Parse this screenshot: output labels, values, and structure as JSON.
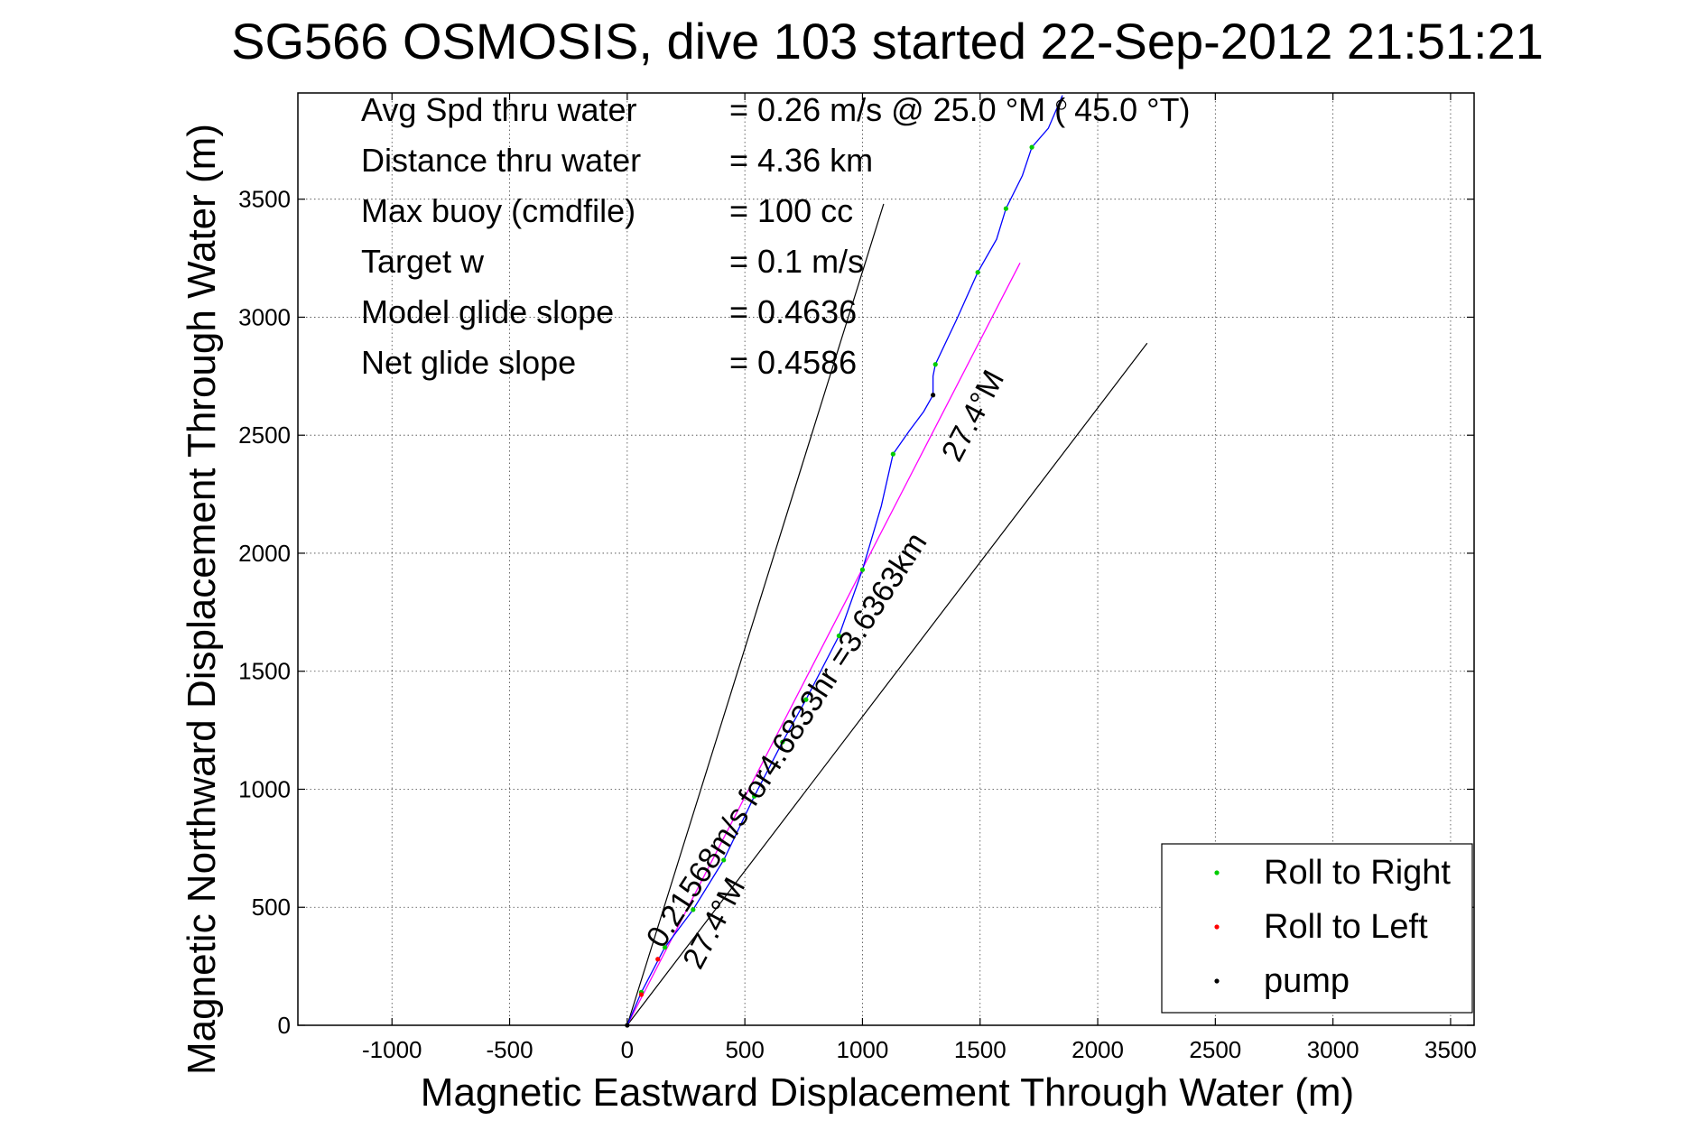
{
  "chart_data": {
    "type": "line",
    "title": "SG566 OSMOSIS, dive 103 started 22-Sep-2012 21:51:21",
    "xlabel": "Magnetic Eastward Displacement Through Water (m)",
    "ylabel": "Magnetic Northward Displacement Through Water (m)",
    "xlim": [
      -1400,
      3600
    ],
    "ylim": [
      0,
      3950
    ],
    "x_ticks": [
      -1000,
      -500,
      0,
      500,
      1000,
      1500,
      2000,
      2500,
      3000,
      3500
    ],
    "y_ticks": [
      0,
      500,
      1000,
      1500,
      2000,
      2500,
      3000,
      3500
    ],
    "grid": true,
    "legend_position": "bottom-right",
    "colors": {
      "track": "#0000ff",
      "glide_line": "#ff00ff",
      "roll_right": "#00cc00",
      "roll_left": "#ff0000",
      "pump": "#000000",
      "cone": "#000000"
    },
    "info_box": {
      "labels": [
        "Avg Spd thru water",
        "Distance thru water",
        "Max buoy (cmdfile)",
        "Target w",
        "Model glide slope",
        "Net glide slope"
      ],
      "values": [
        "=  0.26 m/s @  25.0 °M ( 45.0 °T)",
        "=  4.36 km",
        "= 100 cc",
        "= 0.1 m/s",
        "= 0.4636",
        "= 0.4586"
      ]
    },
    "series": [
      {
        "name": "Roll to Right",
        "marker": "point",
        "points": [
          [
            60,
            140
          ],
          [
            160,
            330
          ],
          [
            280,
            490
          ],
          [
            410,
            700
          ],
          [
            540,
            970
          ],
          [
            660,
            1200
          ],
          [
            760,
            1380
          ],
          [
            900,
            1650
          ],
          [
            1000,
            1930
          ],
          [
            1130,
            2420
          ],
          [
            1310,
            2800
          ],
          [
            1490,
            3190
          ],
          [
            1610,
            3460
          ],
          [
            1720,
            3720
          ]
        ]
      },
      {
        "name": "Roll to Left",
        "marker": "point",
        "points": [
          [
            60,
            130
          ],
          [
            130,
            280
          ]
        ]
      },
      {
        "name": "pump",
        "marker": "point",
        "points": [
          [
            0,
            0
          ],
          [
            1300,
            2670
          ]
        ]
      }
    ],
    "track": [
      [
        0,
        0
      ],
      [
        60,
        140
      ],
      [
        160,
        330
      ],
      [
        280,
        490
      ],
      [
        410,
        700
      ],
      [
        540,
        970
      ],
      [
        660,
        1200
      ],
      [
        760,
        1380
      ],
      [
        900,
        1650
      ],
      [
        1000,
        1930
      ],
      [
        1080,
        2200
      ],
      [
        1130,
        2420
      ],
      [
        1200,
        2520
      ],
      [
        1260,
        2600
      ],
      [
        1300,
        2670
      ],
      [
        1300,
        2750
      ],
      [
        1310,
        2800
      ],
      [
        1400,
        2990
      ],
      [
        1490,
        3190
      ],
      [
        1570,
        3330
      ],
      [
        1610,
        3460
      ],
      [
        1680,
        3600
      ],
      [
        1720,
        3720
      ],
      [
        1790,
        3800
      ],
      [
        1850,
        3940
      ]
    ],
    "glide_line": [
      [
        0,
        0
      ],
      [
        1670,
        3230
      ]
    ],
    "cone_lines": [
      [
        [
          0,
          0
        ],
        [
          1090,
          3480
        ]
      ],
      [
        [
          0,
          0
        ],
        [
          2210,
          2890
        ]
      ]
    ],
    "end_marker": [
      1845,
      3900
    ],
    "annotations": [
      {
        "text": "0.21568m/s for4.6833hr =3.6363km",
        "x": 150,
        "y": 320,
        "angle": 57
      },
      {
        "text": "27.4°M",
        "x": 310,
        "y": 230,
        "angle": 62
      },
      {
        "text": "27.4°M",
        "x": 1410,
        "y": 2380,
        "angle": 62
      }
    ]
  }
}
